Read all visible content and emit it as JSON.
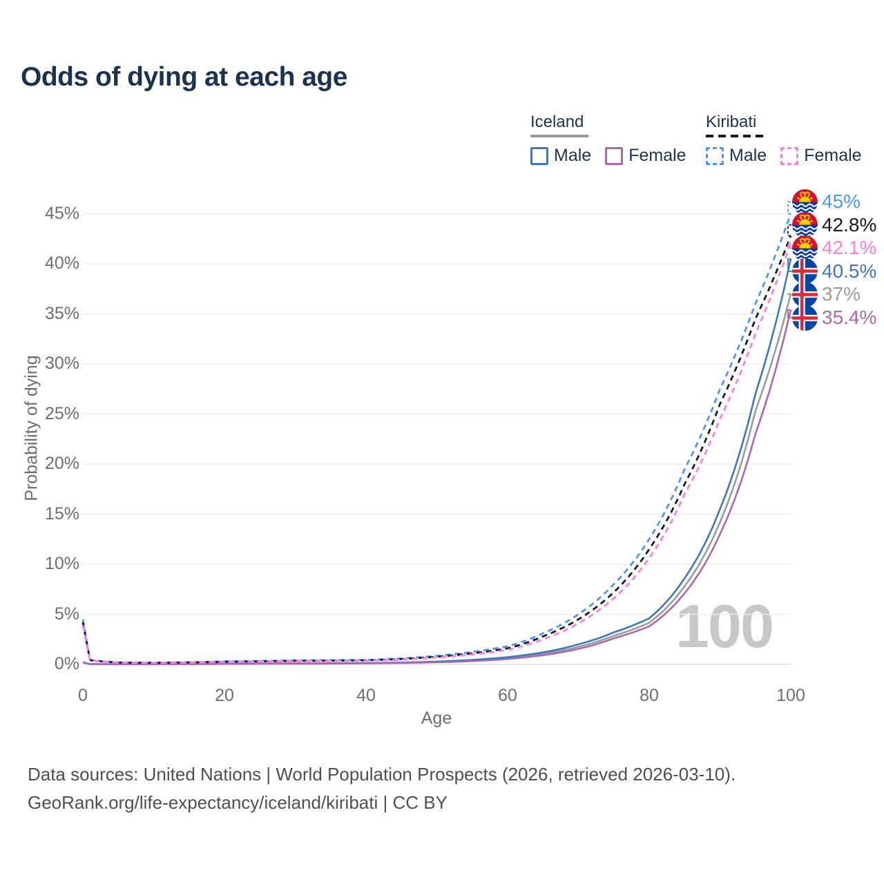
{
  "page": {
    "title": "Odds of dying at each age",
    "watermark": "100",
    "footer_line1": "Data sources: United Nations | World Population Prospects (2026, retrieved 2026-03-10).",
    "footer_line2": "GeoRank.org/life-expectancy/iceland/kiribati | CC BY"
  },
  "legend": {
    "groups": [
      {
        "country": "Iceland",
        "line_style": "solid",
        "line_color": "#9b9b9b",
        "items": [
          {
            "label": "Male",
            "color": "#3f76c2",
            "dashed": false
          },
          {
            "label": "Female",
            "color": "#a869ad",
            "dashed": false
          }
        ]
      },
      {
        "country": "Kiribati",
        "line_style": "dashed",
        "line_color": "#1a1a1a",
        "items": [
          {
            "label": "Male",
            "color": "#4f93ff",
            "dashed": true
          },
          {
            "label": "Female",
            "color": "#ff7ce0",
            "dashed": true
          }
        ]
      }
    ]
  },
  "chart_data": {
    "type": "line",
    "title": "Odds of dying at each age",
    "xlabel": "Age",
    "ylabel": "Probability of dying",
    "xlim": [
      0,
      100
    ],
    "ylim": [
      0,
      45
    ],
    "x_ticks": [
      0,
      20,
      40,
      60,
      80,
      100
    ],
    "y_ticks": [
      0,
      5,
      10,
      15,
      20,
      25,
      30,
      35,
      40,
      45
    ],
    "y_tick_format": "percent",
    "grid": "horizontal",
    "legend_position": "top-right",
    "x": [
      0,
      1,
      5,
      10,
      15,
      20,
      25,
      30,
      35,
      40,
      45,
      50,
      55,
      60,
      65,
      70,
      75,
      80,
      85,
      90,
      95,
      100
    ],
    "series": [
      {
        "name": "Kiribati Male",
        "country": "Kiribati",
        "sex": "Male",
        "flag": "kiribati",
        "color": "#4f93ff",
        "dashed": true,
        "end_label": "45%",
        "end_value": 45.0,
        "values": [
          4.5,
          0.45,
          0.2,
          0.17,
          0.22,
          0.3,
          0.35,
          0.4,
          0.42,
          0.45,
          0.6,
          0.85,
          1.25,
          1.8,
          3.1,
          5.0,
          8.0,
          12.5,
          19.5,
          27.5,
          36.0,
          45.0
        ]
      },
      {
        "name": "Kiribati Both sexes",
        "country": "Kiribati",
        "sex": "Both",
        "flag": "kiribati",
        "color": "#1a1a1a",
        "dashed": true,
        "end_label": "42.8%",
        "end_value": 42.8,
        "values": [
          4.2,
          0.42,
          0.18,
          0.15,
          0.19,
          0.26,
          0.3,
          0.35,
          0.37,
          0.4,
          0.53,
          0.76,
          1.1,
          1.6,
          2.8,
          4.5,
          7.2,
          11.5,
          18.0,
          26.0,
          34.5,
          42.8
        ]
      },
      {
        "name": "Kiribati Female",
        "country": "Kiribati",
        "sex": "Female",
        "flag": "kiribati",
        "color": "#ff7ce0",
        "dashed": true,
        "end_label": "42.1%",
        "end_value": 42.1,
        "values": [
          3.9,
          0.4,
          0.17,
          0.14,
          0.17,
          0.23,
          0.27,
          0.31,
          0.33,
          0.36,
          0.47,
          0.68,
          1.0,
          1.45,
          2.5,
          4.1,
          6.6,
          10.6,
          17.0,
          24.5,
          33.0,
          42.1
        ]
      },
      {
        "name": "Iceland Male",
        "country": "Iceland",
        "sex": "Male",
        "flag": "iceland",
        "color": "#3f76c2",
        "dashed": false,
        "end_label": "40.5%",
        "end_value": 40.5,
        "values": [
          0.22,
          0.03,
          0.02,
          0.02,
          0.05,
          0.08,
          0.09,
          0.1,
          0.11,
          0.13,
          0.18,
          0.28,
          0.45,
          0.72,
          1.2,
          2.0,
          3.2,
          4.6,
          8.6,
          15.5,
          27.0,
          40.5
        ]
      },
      {
        "name": "Iceland Both sexes",
        "country": "Iceland",
        "sex": "Both",
        "flag": "iceland",
        "color": "#9b9b9b",
        "dashed": false,
        "end_label": "37%",
        "end_value": 37.0,
        "values": [
          0.2,
          0.025,
          0.015,
          0.015,
          0.04,
          0.06,
          0.07,
          0.08,
          0.1,
          0.12,
          0.16,
          0.25,
          0.4,
          0.62,
          1.05,
          1.75,
          2.85,
          4.15,
          7.8,
          14.2,
          25.3,
          37.0
        ]
      },
      {
        "name": "Iceland Female",
        "country": "Iceland",
        "sex": "Female",
        "flag": "iceland",
        "color": "#a869ad",
        "dashed": false,
        "end_label": "35.4%",
        "end_value": 35.4,
        "values": [
          0.18,
          0.02,
          0.012,
          0.012,
          0.03,
          0.05,
          0.06,
          0.07,
          0.08,
          0.1,
          0.14,
          0.21,
          0.33,
          0.54,
          0.92,
          1.55,
          2.6,
          3.8,
          7.1,
          13.0,
          23.0,
          35.4
        ]
      }
    ]
  }
}
